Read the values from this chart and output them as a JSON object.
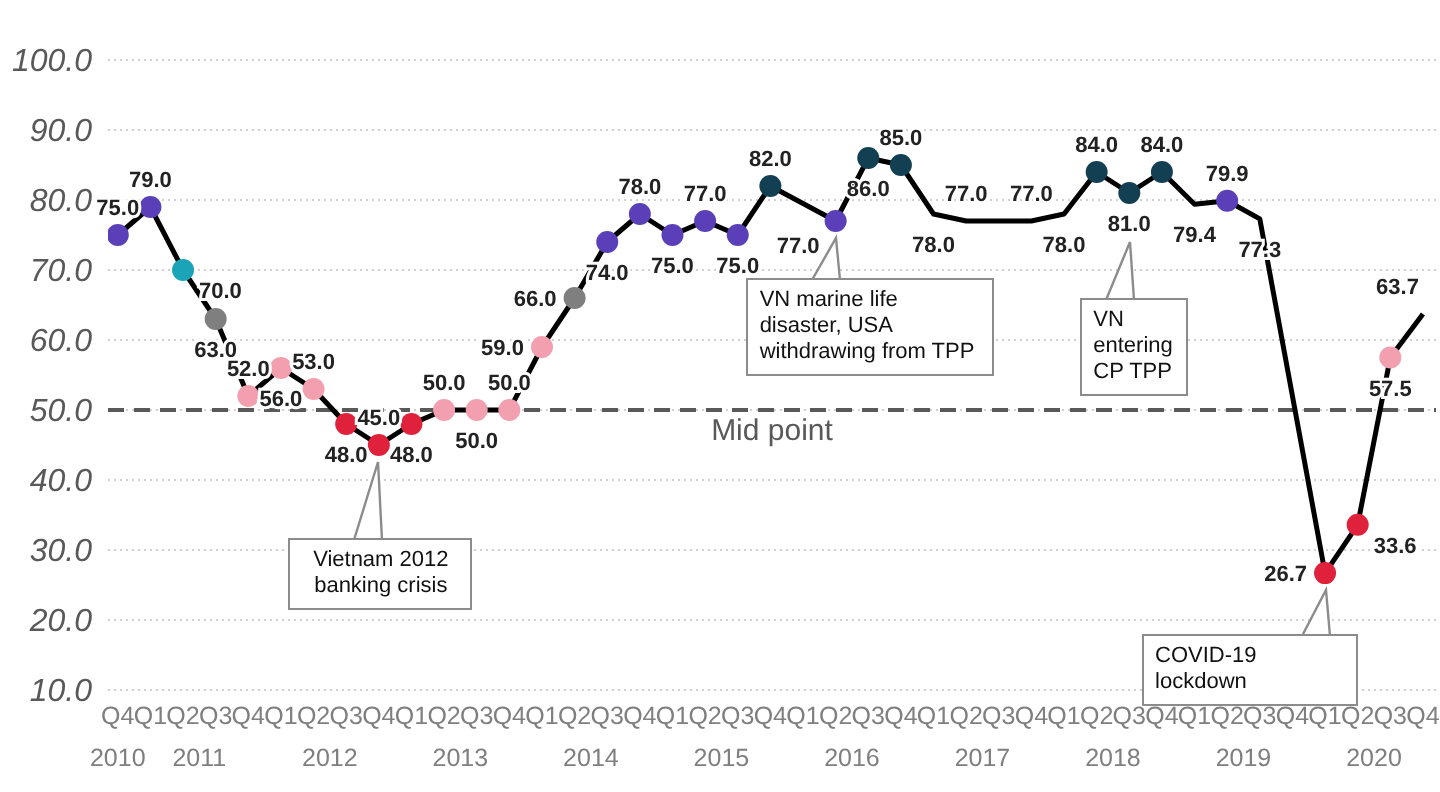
{
  "chart_data": {
    "type": "line",
    "categories": [
      "Q4",
      "Q1",
      "Q2",
      "Q3",
      "Q4",
      "Q1",
      "Q2",
      "Q3",
      "Q4",
      "Q1",
      "Q2",
      "Q3",
      "Q4",
      "Q1",
      "Q2",
      "Q3",
      "Q4",
      "Q1",
      "Q2",
      "Q3",
      "Q4",
      "Q1",
      "Q2",
      "Q3",
      "Q4",
      "Q1",
      "Q2",
      "Q3",
      "Q4",
      "Q1",
      "Q2",
      "Q3",
      "Q4",
      "Q1",
      "Q2",
      "Q3",
      "Q4",
      "Q1",
      "Q2",
      "Q3",
      "Q4"
    ],
    "values": [
      75.0,
      79.0,
      70.0,
      63.0,
      52.0,
      56.0,
      53.0,
      48.0,
      45.0,
      48.0,
      50.0,
      50.0,
      50.0,
      59.0,
      66.0,
      74.0,
      78.0,
      75.0,
      77.0,
      75.0,
      82.0,
      79.5,
      77.0,
      86.0,
      85.0,
      78.0,
      77.0,
      77.0,
      77.0,
      78.0,
      84.0,
      81.0,
      84.0,
      79.4,
      79.9,
      77.3,
      null,
      26.7,
      33.6,
      57.5,
      63.7
    ],
    "color": "#000000",
    "colors": [
      "#5b3fb8",
      "#5b3fb8",
      "#1ba3b8",
      "#7f7f7f",
      "#f2a0b0",
      "#f2a0b0",
      "#f2a0b0",
      "#e0213c",
      "#e0213c",
      "#e0213c",
      "#f2a0b0",
      "#f2a0b0",
      "#f2a0b0",
      "#f2a0b0",
      "#7f7f7f",
      "#5b3fb8",
      "#5b3fb8",
      "#5b3fb8",
      "#5b3fb8",
      "#5b3fb8",
      "#123f52",
      null,
      "#5b3fb8",
      "#123f52",
      "#123f52",
      null,
      null,
      null,
      null,
      null,
      "#123f52",
      "#123f52",
      "#123f52",
      null,
      "#5b3fb8",
      null,
      null,
      "#e0213c",
      "#e0213c",
      "#f2a0b0",
      null
    ],
    "value_labels": [
      "75.0",
      "79.0",
      "70.0",
      "63.0",
      "52.0",
      "56.0",
      "53.0",
      "48.0",
      "45.0",
      "48.0",
      "50.0",
      "50.0",
      "50.0",
      "59.0",
      "66.0",
      "74.0",
      "78.0",
      "75.0",
      "77.0",
      "75.0",
      "82.0",
      null,
      "77.0",
      "86.0",
      "85.0",
      "78.0",
      "77.0",
      null,
      "77.0",
      "78.0",
      "84.0",
      "81.0",
      "84.0",
      "79.4",
      "79.9",
      "77.3",
      null,
      "26.7",
      "33.6",
      "57.5",
      "63.7"
    ],
    "marker": "circle",
    "line_style": "solid",
    "ylim": [
      10,
      100
    ],
    "yticks": [
      {
        "value": 10,
        "label": "10.0"
      },
      {
        "value": 20,
        "label": "20.0"
      },
      {
        "value": 30,
        "label": "30.0"
      },
      {
        "value": 40,
        "label": "40.0"
      },
      {
        "value": 50,
        "label": "50.0"
      },
      {
        "value": 60,
        "label": "60.0"
      },
      {
        "value": 70,
        "label": "70.0"
      },
      {
        "value": 80,
        "label": "80.0"
      },
      {
        "value": 90,
        "label": "90.0"
      },
      {
        "value": 100,
        "label": "100.0"
      }
    ],
    "grid": "y",
    "ref_lines": [
      {
        "axis": "y",
        "value": 50,
        "label": "Mid point",
        "color": "#595959",
        "line_style": "dashed"
      }
    ],
    "annotations": [
      "2010",
      "2011",
      "2012",
      "2013",
      "2014",
      "2015",
      "2016",
      "2017",
      "2018",
      "2019",
      "2020",
      "Vietnam 2012 banking crisis",
      "VN marine life disaster, USA withdrawing from TPP",
      "VN entering CP TPP",
      "COVID-19 lockdown"
    ]
  }
}
